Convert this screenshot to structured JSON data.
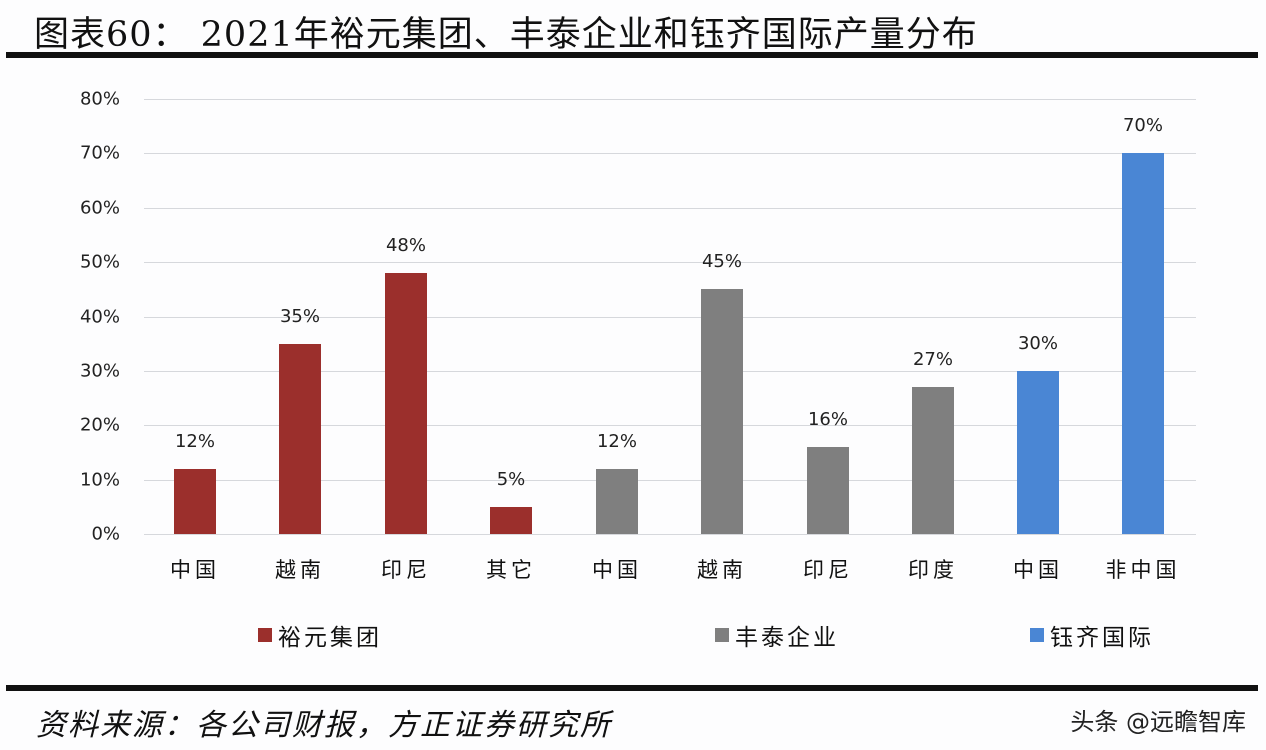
{
  "title": "图表60： 2021年裕元集团、丰泰企业和钰齐国际产量分布",
  "source": "资料来源：各公司财报，方正证券研究所",
  "watermark": "头条 @远瞻智库",
  "y_ticks": [
    "80%",
    "70%",
    "60%",
    "50%",
    "40%",
    "30%",
    "20%",
    "10%",
    "0%"
  ],
  "legend": [
    {
      "label": "裕元集团",
      "color": "#9b2f2c"
    },
    {
      "label": "丰泰企业",
      "color": "#7f7f7f"
    },
    {
      "label": "钰齐国际",
      "color": "#4a86d4"
    }
  ],
  "bars": [
    {
      "category": "中国",
      "value": 12,
      "label": "12%",
      "series": "裕元集团",
      "color": "#9b2f2c"
    },
    {
      "category": "越南",
      "value": 35,
      "label": "35%",
      "series": "裕元集团",
      "color": "#9b2f2c"
    },
    {
      "category": "印尼",
      "value": 48,
      "label": "48%",
      "series": "裕元集团",
      "color": "#9b2f2c"
    },
    {
      "category": "其它",
      "value": 5,
      "label": "5%",
      "series": "裕元集团",
      "color": "#9b2f2c"
    },
    {
      "category": "中国",
      "value": 12,
      "label": "12%",
      "series": "丰泰企业",
      "color": "#7f7f7f"
    },
    {
      "category": "越南",
      "value": 45,
      "label": "45%",
      "series": "丰泰企业",
      "color": "#7f7f7f"
    },
    {
      "category": "印尼",
      "value": 16,
      "label": "16%",
      "series": "丰泰企业",
      "color": "#7f7f7f"
    },
    {
      "category": "印度",
      "value": 27,
      "label": "27%",
      "series": "丰泰企业",
      "color": "#7f7f7f"
    },
    {
      "category": "中国",
      "value": 30,
      "label": "30%",
      "series": "钰齐国际",
      "color": "#4a86d4"
    },
    {
      "category": "非中国",
      "value": 70,
      "label": "70%",
      "series": "钰齐国际",
      "color": "#4a86d4"
    }
  ],
  "chart_data": {
    "type": "bar",
    "title": "2021年裕元集团、丰泰企业和钰齐国际产量分布",
    "xlabel": "",
    "ylabel": "",
    "ylim": [
      0,
      80
    ],
    "y_tick_labels": [
      "0%",
      "10%",
      "20%",
      "30%",
      "40%",
      "50%",
      "60%",
      "70%",
      "80%"
    ],
    "grid": true,
    "legend_position": "bottom",
    "categories": [
      "中国",
      "越南",
      "印尼",
      "其它",
      "中国",
      "越南",
      "印尼",
      "印度",
      "中国",
      "非中国"
    ],
    "series": [
      {
        "name": "裕元集团",
        "color": "#9b2f2c",
        "categories": [
          "中国",
          "越南",
          "印尼",
          "其它"
        ],
        "values": [
          12,
          35,
          48,
          5
        ]
      },
      {
        "name": "丰泰企业",
        "color": "#7f7f7f",
        "categories": [
          "中国",
          "越南",
          "印尼",
          "印度"
        ],
        "values": [
          12,
          45,
          16,
          27
        ]
      },
      {
        "name": "钰齐国际",
        "color": "#4a86d4",
        "categories": [
          "中国",
          "非中国"
        ],
        "values": [
          30,
          70
        ]
      }
    ],
    "data_labels": [
      "12%",
      "35%",
      "48%",
      "5%",
      "12%",
      "45%",
      "16%",
      "27%",
      "30%",
      "70%"
    ]
  }
}
